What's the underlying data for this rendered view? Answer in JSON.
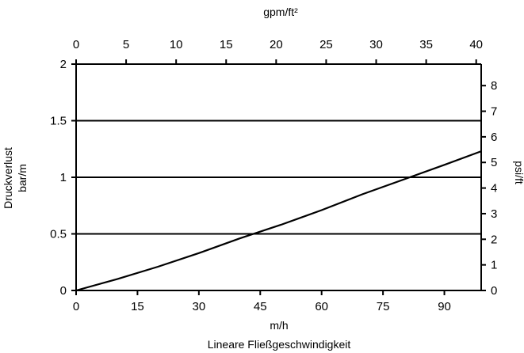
{
  "chart_data": {
    "type": "line",
    "xlabel_top": "gpm/ft²",
    "xlabel_bottom_unit": "m/h",
    "xlabel_bottom": "Lineare Fließgeschwindigkeit",
    "ylabel_left_line1": "Druckverlust",
    "ylabel_left_line2": "bar/m",
    "ylabel_right": "psi/ft",
    "x_bottom": {
      "lim": [
        0,
        99
      ],
      "ticks": [
        0,
        15,
        30,
        45,
        60,
        75,
        90
      ],
      "tick_labels": [
        "0",
        "15",
        "30",
        "45",
        "60",
        "75",
        "90"
      ]
    },
    "x_top": {
      "lim": [
        0,
        40.5
      ],
      "ticks": [
        0,
        5,
        10,
        15,
        20,
        25,
        30,
        35,
        40
      ],
      "tick_labels": [
        "0",
        "5",
        "10",
        "15",
        "20",
        "25",
        "30",
        "35",
        "40"
      ]
    },
    "y_left": {
      "lim": [
        0,
        2
      ],
      "ticks": [
        0,
        0.5,
        1,
        1.5,
        2
      ],
      "tick_labels": [
        "0",
        "0.5",
        "1",
        "1.5",
        "2"
      ]
    },
    "y_right": {
      "lim": [
        0,
        8.84
      ],
      "ticks": [
        0,
        1,
        2,
        3,
        4,
        5,
        6,
        7,
        8
      ],
      "tick_labels": [
        "0",
        "1",
        "2",
        "3",
        "4",
        "5",
        "6",
        "7",
        "8"
      ]
    },
    "gridlines_y": [
      0.5,
      1,
      1.5
    ],
    "series": [
      {
        "x": [
          0,
          10,
          20,
          30,
          40,
          50,
          60,
          70,
          80,
          90,
          99
        ],
        "y": [
          0,
          0.1,
          0.21,
          0.33,
          0.46,
          0.58,
          0.71,
          0.85,
          0.98,
          1.11,
          1.23
        ]
      }
    ]
  }
}
